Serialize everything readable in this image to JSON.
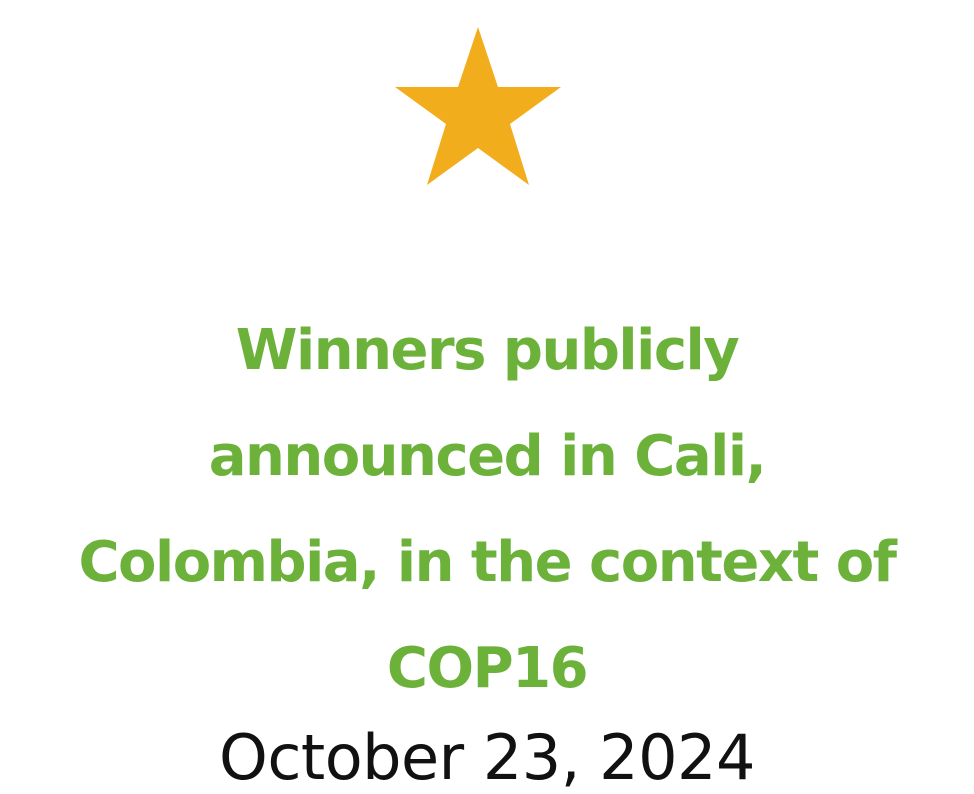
{
  "star": {
    "icon": "star-icon",
    "color": "#f2ad1c"
  },
  "headline": {
    "color": "#6cb23a",
    "lines": [
      "Winners publicly",
      "announced in Cali,",
      "Colombia, in the context of",
      "COP16"
    ]
  },
  "date": {
    "text": "October 23, 2024",
    "color": "#111111"
  }
}
